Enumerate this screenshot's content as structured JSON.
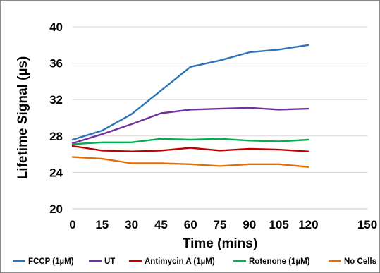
{
  "chart_data": {
    "type": "line",
    "title": "",
    "xlabel": "Time (mins)",
    "ylabel": "Lifetime Signal (µs)",
    "xlim": [
      0,
      150
    ],
    "ylim": [
      20,
      40
    ],
    "x_ticks": [
      0,
      15,
      30,
      45,
      60,
      75,
      90,
      105,
      120,
      150
    ],
    "y_ticks": [
      20,
      24,
      28,
      32,
      36,
      40
    ],
    "grid": "horizontal",
    "legend_position": "bottom",
    "x": [
      0,
      15,
      30,
      45,
      60,
      75,
      90,
      105,
      120
    ],
    "series": [
      {
        "name": "FCCP (1µM)",
        "color": "#2f73b8",
        "values": [
          27.6,
          28.6,
          30.4,
          33.0,
          35.6,
          36.3,
          37.2,
          37.5,
          38.0
        ]
      },
      {
        "name": "UT",
        "color": "#7030a0",
        "values": [
          27.2,
          28.2,
          29.3,
          30.5,
          30.9,
          31.0,
          31.1,
          30.9,
          31.0
        ]
      },
      {
        "name": "Antimycin A (1µM)",
        "color": "#c00000",
        "values": [
          26.9,
          26.4,
          26.3,
          26.4,
          26.7,
          26.4,
          26.6,
          26.5,
          26.3
        ]
      },
      {
        "name": "Rotenone (1µM)",
        "color": "#00b050",
        "values": [
          27.1,
          27.3,
          27.3,
          27.7,
          27.6,
          27.7,
          27.5,
          27.4,
          27.6
        ]
      },
      {
        "name": "No Cells",
        "color": "#e36c09",
        "values": [
          25.7,
          25.5,
          25.0,
          25.0,
          24.9,
          24.7,
          24.9,
          24.9,
          24.6
        ]
      }
    ]
  }
}
